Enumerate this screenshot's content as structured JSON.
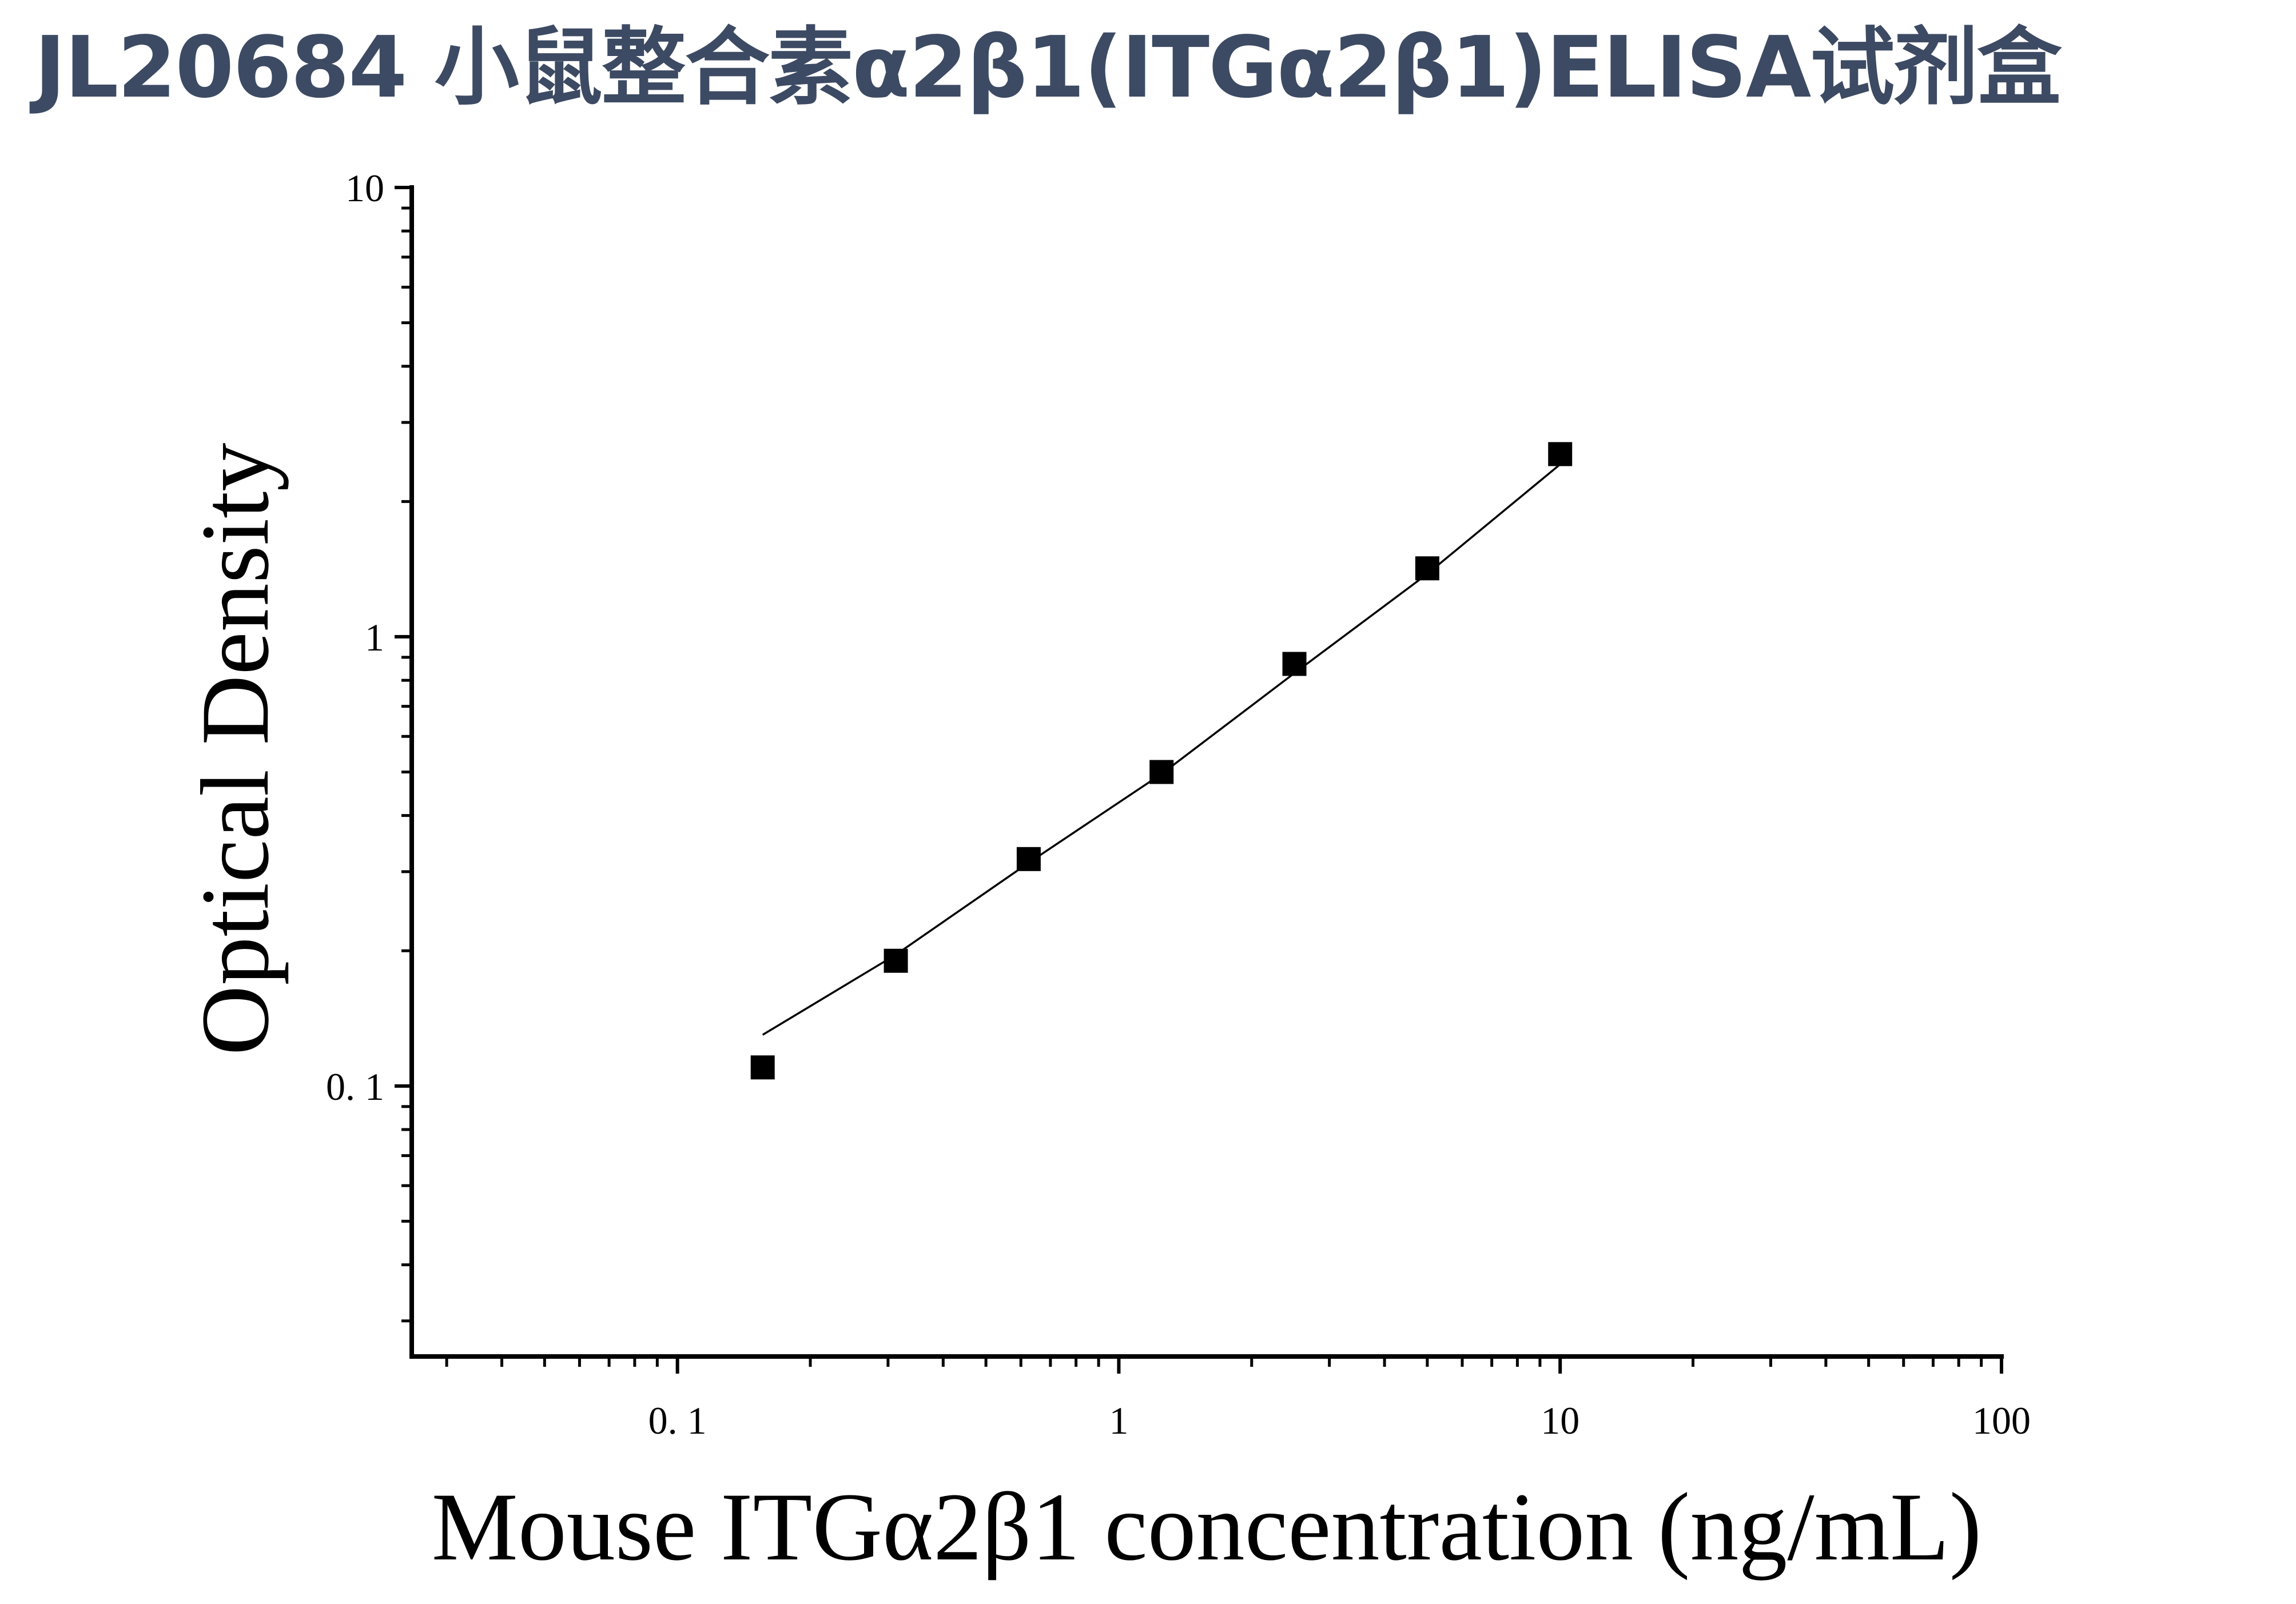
{
  "title": "JL20684 小鼠整合素α2β1(ITGα2β1)ELISA试剂盒",
  "colors": {
    "title": "#3d4a63",
    "axis": "#000000",
    "marker": "#000000",
    "curve": "#000000"
  },
  "chart_data": {
    "type": "scatter",
    "title": "JL20684 小鼠整合素α2β1(ITGα2β1)ELISA试剂盒",
    "xlabel": "Mouse ITGα2β1 concentration (ng/mL)",
    "ylabel": "Optical Density",
    "xscale": "log",
    "yscale": "log",
    "xlim": [
      0.025,
      100
    ],
    "ylim": [
      0.025,
      10
    ],
    "xticks": [
      {
        "value": 0.1,
        "label": "0. 1"
      },
      {
        "value": 1,
        "label": "1"
      },
      {
        "value": 10,
        "label": "10"
      },
      {
        "value": 100,
        "label": "100"
      }
    ],
    "yticks": [
      {
        "value": 0.1,
        "label": "0. 1"
      },
      {
        "value": 1,
        "label": "1"
      },
      {
        "value": 10,
        "label": "10"
      }
    ],
    "grid": false,
    "legend": "none",
    "marker": "square",
    "series": [
      {
        "x": [
          0.156,
          0.3125,
          0.625,
          1.25,
          2.5,
          5,
          10
        ],
        "y": [
          0.11,
          0.19,
          0.32,
          0.5,
          0.87,
          1.42,
          2.55
        ]
      }
    ],
    "fit_curve": {
      "x": [
        0.156,
        0.3125,
        0.625,
        1.25,
        2.5,
        5,
        10
      ],
      "y": [
        0.13,
        0.196,
        0.314,
        0.495,
        0.83,
        1.38,
        2.42
      ]
    }
  }
}
